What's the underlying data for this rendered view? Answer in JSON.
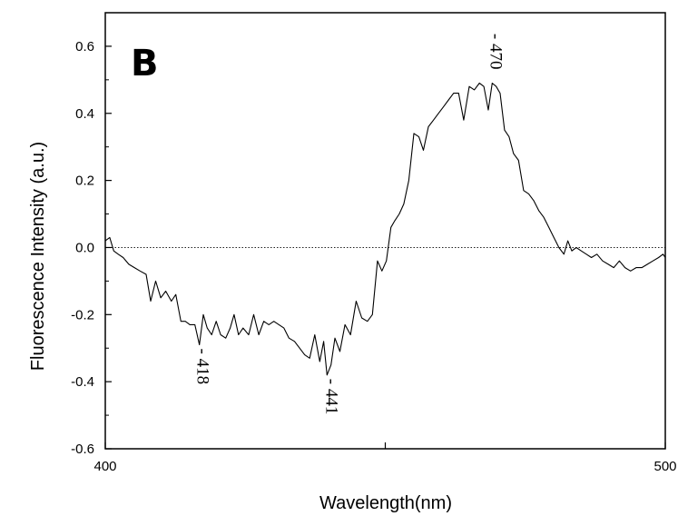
{
  "chart_data": {
    "type": "line",
    "panel_label": "B",
    "xlabel": "Wavelength(nm)",
    "ylabel": "Fluorescence Intensity (a.u.)",
    "xlim": [
      400,
      500
    ],
    "ylim": [
      -0.6,
      0.7
    ],
    "x_ticks": [
      400,
      450,
      500
    ],
    "x_tick_labels": [
      "400",
      "",
      "500"
    ],
    "y_ticks": [
      -0.6,
      -0.4,
      -0.2,
      0.0,
      0.2,
      0.4,
      0.6
    ],
    "y_tick_labels": [
      "-0.6",
      "-0.4",
      "-0.2",
      "0.0",
      "0.2",
      "0.4",
      "0.6"
    ],
    "reference_line": {
      "y": 0.0,
      "style": "dotted"
    },
    "annotations": [
      {
        "text": "- 418",
        "x": 417.4,
        "y": -0.29
      },
      {
        "text": "- 441",
        "x": 440.4,
        "y": -0.38
      },
      {
        "text": "- 470",
        "x": 469.8,
        "y": 0.52
      }
    ],
    "series": [
      {
        "x": [
          400.0,
          400.8,
          401.5,
          402.3,
          403.2,
          404.2,
          405.2,
          406.2,
          407.3,
          408.1,
          409.0,
          409.9,
          410.8,
          411.8,
          412.6,
          413.5,
          414.3,
          415.1,
          416.0,
          416.8,
          417.5,
          418.2,
          419.0,
          419.8,
          420.6,
          421.5,
          422.3,
          423.0,
          423.8,
          424.6,
          425.6,
          426.5,
          427.4,
          428.3,
          429.2,
          430.1,
          431.0,
          431.9,
          432.8,
          433.8,
          434.7,
          435.6,
          436.5,
          437.4,
          438.3,
          439.0,
          439.6,
          440.3,
          441.0,
          441.9,
          442.8,
          443.8,
          444.8,
          445.8,
          446.8,
          447.7,
          448.6,
          449.4,
          450.2,
          451.0,
          451.7,
          452.5,
          453.3,
          454.2,
          455.1,
          456.0,
          456.8,
          457.7,
          458.6,
          459.5,
          460.4,
          461.3,
          462.2,
          463.1,
          464.0,
          465.0,
          465.9,
          466.8,
          467.6,
          468.4,
          469.1,
          469.8,
          470.5,
          471.3,
          472.1,
          472.9,
          473.8,
          474.7,
          475.6,
          476.5,
          477.4,
          478.3,
          479.2,
          480.1,
          481.0,
          481.9,
          482.6,
          483.3,
          484.1,
          485.0,
          485.9,
          486.8,
          487.8,
          488.8,
          489.8,
          490.8,
          491.8,
          492.8,
          493.8,
          494.8,
          495.8,
          496.8,
          497.8,
          498.8,
          499.6,
          500.0
        ],
        "y": [
          0.02,
          0.03,
          -0.01,
          -0.02,
          -0.03,
          -0.05,
          -0.06,
          -0.07,
          -0.08,
          -0.16,
          -0.1,
          -0.15,
          -0.13,
          -0.16,
          -0.14,
          -0.22,
          -0.22,
          -0.23,
          -0.23,
          -0.29,
          -0.2,
          -0.24,
          -0.26,
          -0.22,
          -0.26,
          -0.27,
          -0.24,
          -0.2,
          -0.26,
          -0.24,
          -0.26,
          -0.2,
          -0.26,
          -0.22,
          -0.23,
          -0.22,
          -0.23,
          -0.24,
          -0.27,
          -0.28,
          -0.3,
          -0.32,
          -0.33,
          -0.26,
          -0.34,
          -0.28,
          -0.38,
          -0.35,
          -0.27,
          -0.31,
          -0.23,
          -0.26,
          -0.16,
          -0.21,
          -0.22,
          -0.2,
          -0.04,
          -0.07,
          -0.04,
          0.06,
          0.08,
          0.1,
          0.13,
          0.2,
          0.34,
          0.33,
          0.29,
          0.36,
          0.38,
          0.4,
          0.42,
          0.44,
          0.46,
          0.46,
          0.38,
          0.48,
          0.47,
          0.49,
          0.48,
          0.41,
          0.49,
          0.48,
          0.46,
          0.35,
          0.33,
          0.28,
          0.26,
          0.17,
          0.16,
          0.14,
          0.11,
          0.09,
          0.06,
          0.03,
          0.0,
          -0.02,
          0.02,
          -0.01,
          0.0,
          -0.01,
          -0.02,
          -0.03,
          -0.02,
          -0.04,
          -0.05,
          -0.06,
          -0.04,
          -0.06,
          -0.07,
          -0.06,
          -0.06,
          -0.05,
          -0.04,
          -0.03,
          -0.02,
          -0.03
        ]
      }
    ]
  }
}
